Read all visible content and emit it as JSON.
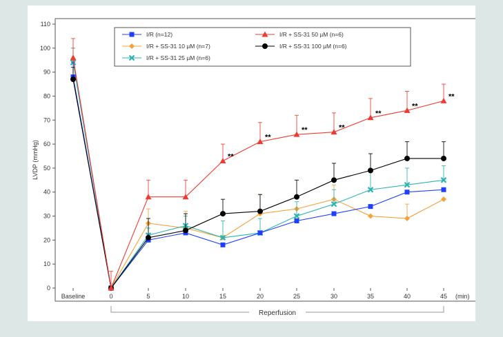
{
  "chart_data": {
    "type": "line",
    "title": "",
    "ylabel": "LVDP (mmHg)",
    "xlabel": "",
    "ylim": [
      0,
      110
    ],
    "yticks": [
      0,
      10,
      20,
      30,
      40,
      50,
      60,
      70,
      80,
      90,
      100,
      110
    ],
    "x_categories": [
      "Baseline",
      "0",
      "5",
      "10",
      "15",
      "20",
      "25",
      "30",
      "35",
      "40",
      "45"
    ],
    "x_unit": "(min)",
    "bracket_label": "Reperfusion",
    "legend_position": "top",
    "grid": false,
    "series": [
      {
        "name": "I/R (n=12)",
        "color": "#1f3fff",
        "marker": "square",
        "values": [
          88,
          0,
          20,
          23,
          18,
          23,
          28,
          31,
          34,
          40,
          41
        ],
        "errors": [
          6,
          0,
          0,
          0,
          0,
          0,
          0,
          0,
          0,
          0,
          0
        ]
      },
      {
        "name": "I/R + SS-31 10 µM (n=7)",
        "color": "#f4a23a",
        "marker": "diamond",
        "values": [
          95,
          0,
          27,
          25,
          21,
          31,
          33,
          37,
          30,
          29,
          37
        ],
        "errors": [
          5,
          0,
          6,
          7,
          0,
          8,
          0,
          6,
          0,
          6,
          0
        ]
      },
      {
        "name": "I/R + SS-31 25 µM (n=6)",
        "color": "#2bb5b0",
        "marker": "x",
        "values": [
          94,
          0,
          22,
          26,
          21,
          23,
          30,
          35,
          41,
          43,
          45
        ],
        "errors": [
          6,
          0,
          3,
          4,
          7,
          6,
          6,
          6,
          8,
          7,
          6
        ]
      },
      {
        "name": "I/R + SS-31 50 µM (n=6)",
        "color": "#f03a30",
        "marker": "triangle",
        "values": [
          96,
          0,
          38,
          38,
          53,
          61,
          64,
          65,
          71,
          74,
          78
        ],
        "errors": [
          8,
          7,
          7,
          7,
          7,
          8,
          8,
          8,
          8,
          8,
          7
        ],
        "significance": [
          "",
          "",
          "",
          "",
          "**",
          "**",
          "**",
          "**",
          "**",
          "**",
          "**"
        ]
      },
      {
        "name": "I/R + SS-31 100 µM (n=6)",
        "color": "#000000",
        "marker": "circle",
        "values": [
          87,
          0,
          21,
          24,
          31,
          32,
          38,
          45,
          49,
          54,
          54
        ],
        "errors": [
          5,
          0,
          8,
          7,
          6,
          7,
          7,
          7,
          7,
          7,
          7
        ]
      }
    ]
  }
}
